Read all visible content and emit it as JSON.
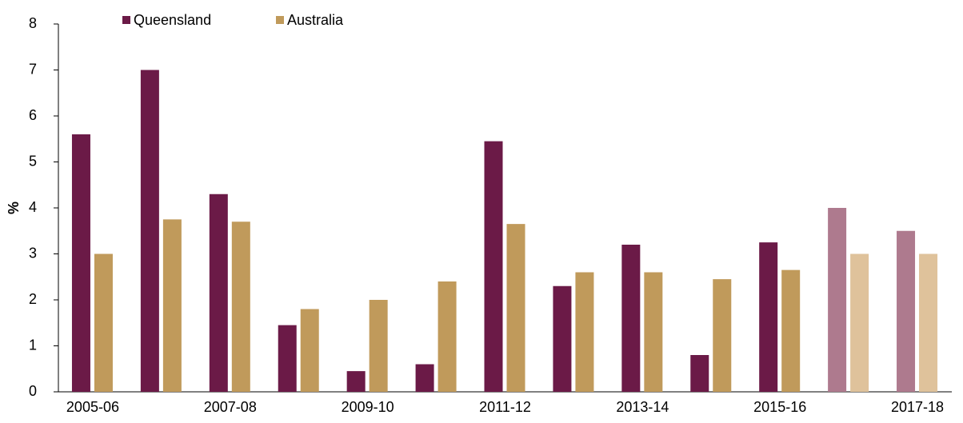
{
  "chart_data": {
    "type": "bar",
    "y_label": "%",
    "categories": [
      "2005-06",
      null,
      "2007-08",
      null,
      "2009-10",
      null,
      "2011-12",
      null,
      "2013-14",
      null,
      "2015-16",
      null,
      "2017-18"
    ],
    "series": [
      {
        "name": "Queensland",
        "color": "#6b1a47",
        "point_colors": [
          "#6b1a47",
          "#6b1a47",
          "#6b1a47",
          "#6b1a47",
          "#6b1a47",
          "#6b1a47",
          "#6b1a47",
          "#6b1a47",
          "#6b1a47",
          "#6b1a47",
          "#6b1a47",
          "#ae7a8e",
          "#ae7a8e"
        ],
        "values": [
          5.6,
          7.0,
          4.3,
          1.45,
          0.45,
          0.6,
          5.45,
          2.3,
          3.2,
          0.8,
          3.25,
          4.0,
          3.5
        ]
      },
      {
        "name": "Australia",
        "color": "#c09a5b",
        "point_colors": [
          "#c09a5b",
          "#c09a5b",
          "#c09a5b",
          "#c09a5b",
          "#c09a5b",
          "#c09a5b",
          "#c09a5b",
          "#c09a5b",
          "#c09a5b",
          "#c09a5b",
          "#c09a5b",
          "#dfc29b",
          "#dfc29b"
        ],
        "values": [
          3.0,
          3.75,
          3.7,
          1.8,
          2.0,
          2.4,
          3.65,
          2.6,
          2.6,
          2.45,
          2.65,
          3.0,
          3.0
        ]
      }
    ],
    "ylim": [
      0,
      8
    ],
    "yticks": [
      0,
      1,
      2,
      3,
      4,
      5,
      6,
      7,
      8
    ],
    "grid": false
  }
}
